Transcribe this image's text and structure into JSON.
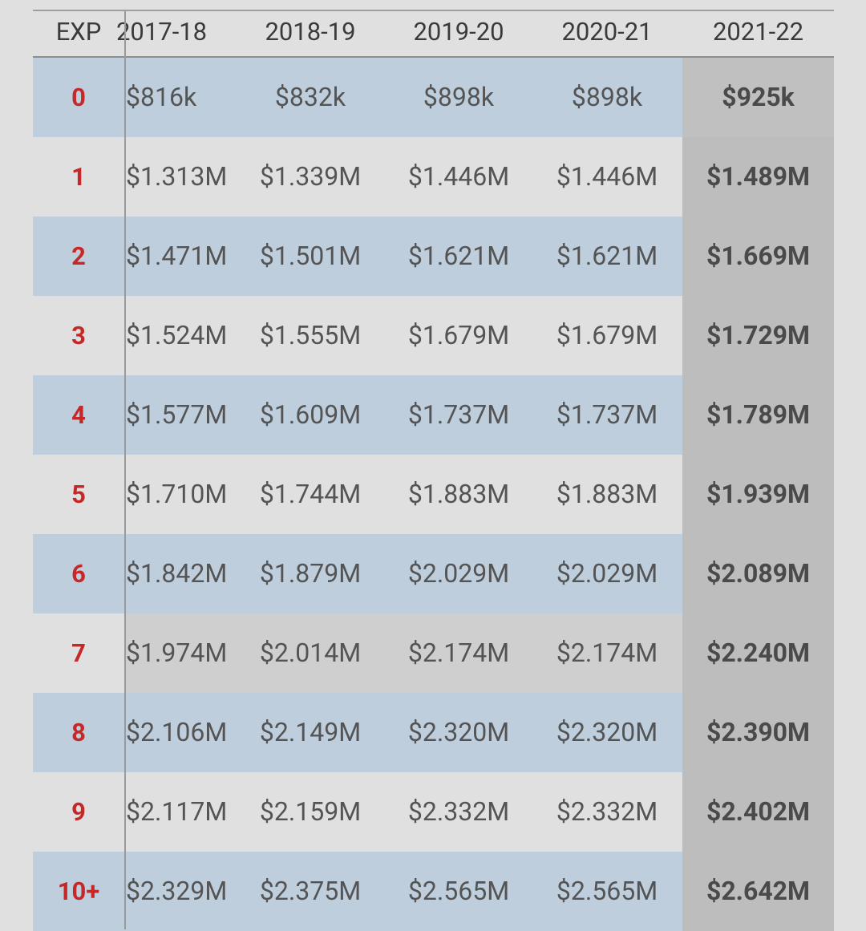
{
  "header": {
    "exp": "EXP",
    "seasons": [
      "2017-18",
      "2018-19",
      "2019-20",
      "2020-21",
      "2021-22"
    ]
  },
  "rows": [
    {
      "exp": "0",
      "values": [
        "$816k",
        "$832k",
        "$898k",
        "$898k",
        "$925k"
      ]
    },
    {
      "exp": "1",
      "values": [
        "$1.313M",
        "$1.339M",
        "$1.446M",
        "$1.446M",
        "$1.489M"
      ]
    },
    {
      "exp": "2",
      "values": [
        "$1.471M",
        "$1.501M",
        "$1.621M",
        "$1.621M",
        "$1.669M"
      ]
    },
    {
      "exp": "3",
      "values": [
        "$1.524M",
        "$1.555M",
        "$1.679M",
        "$1.679M",
        "$1.729M"
      ]
    },
    {
      "exp": "4",
      "values": [
        "$1.577M",
        "$1.609M",
        "$1.737M",
        "$1.737M",
        "$1.789M"
      ]
    },
    {
      "exp": "5",
      "values": [
        "$1.710M",
        "$1.744M",
        "$1.883M",
        "$1.883M",
        "$1.939M"
      ]
    },
    {
      "exp": "6",
      "values": [
        "$1.842M",
        "$1.879M",
        "$2.029M",
        "$2.029M",
        "$2.089M"
      ]
    },
    {
      "exp": "7",
      "values": [
        "$1.974M",
        "$2.014M",
        "$2.174M",
        "$2.174M",
        "$2.240M"
      ]
    },
    {
      "exp": "8",
      "values": [
        "$2.106M",
        "$2.149M",
        "$2.320M",
        "$2.320M",
        "$2.390M"
      ]
    },
    {
      "exp": "9",
      "values": [
        "$2.117M",
        "$2.159M",
        "$2.332M",
        "$2.332M",
        "$2.402M"
      ]
    },
    {
      "exp": "10+",
      "values": [
        "$2.329M",
        "$2.375M",
        "$2.565M",
        "$2.565M",
        "$2.642M"
      ]
    }
  ],
  "colors": {
    "exp_text": "#c62828",
    "row_blue": "#bfcedd",
    "row_gray": "#e0e0e0",
    "highlight_column": "#bdbdbd"
  }
}
